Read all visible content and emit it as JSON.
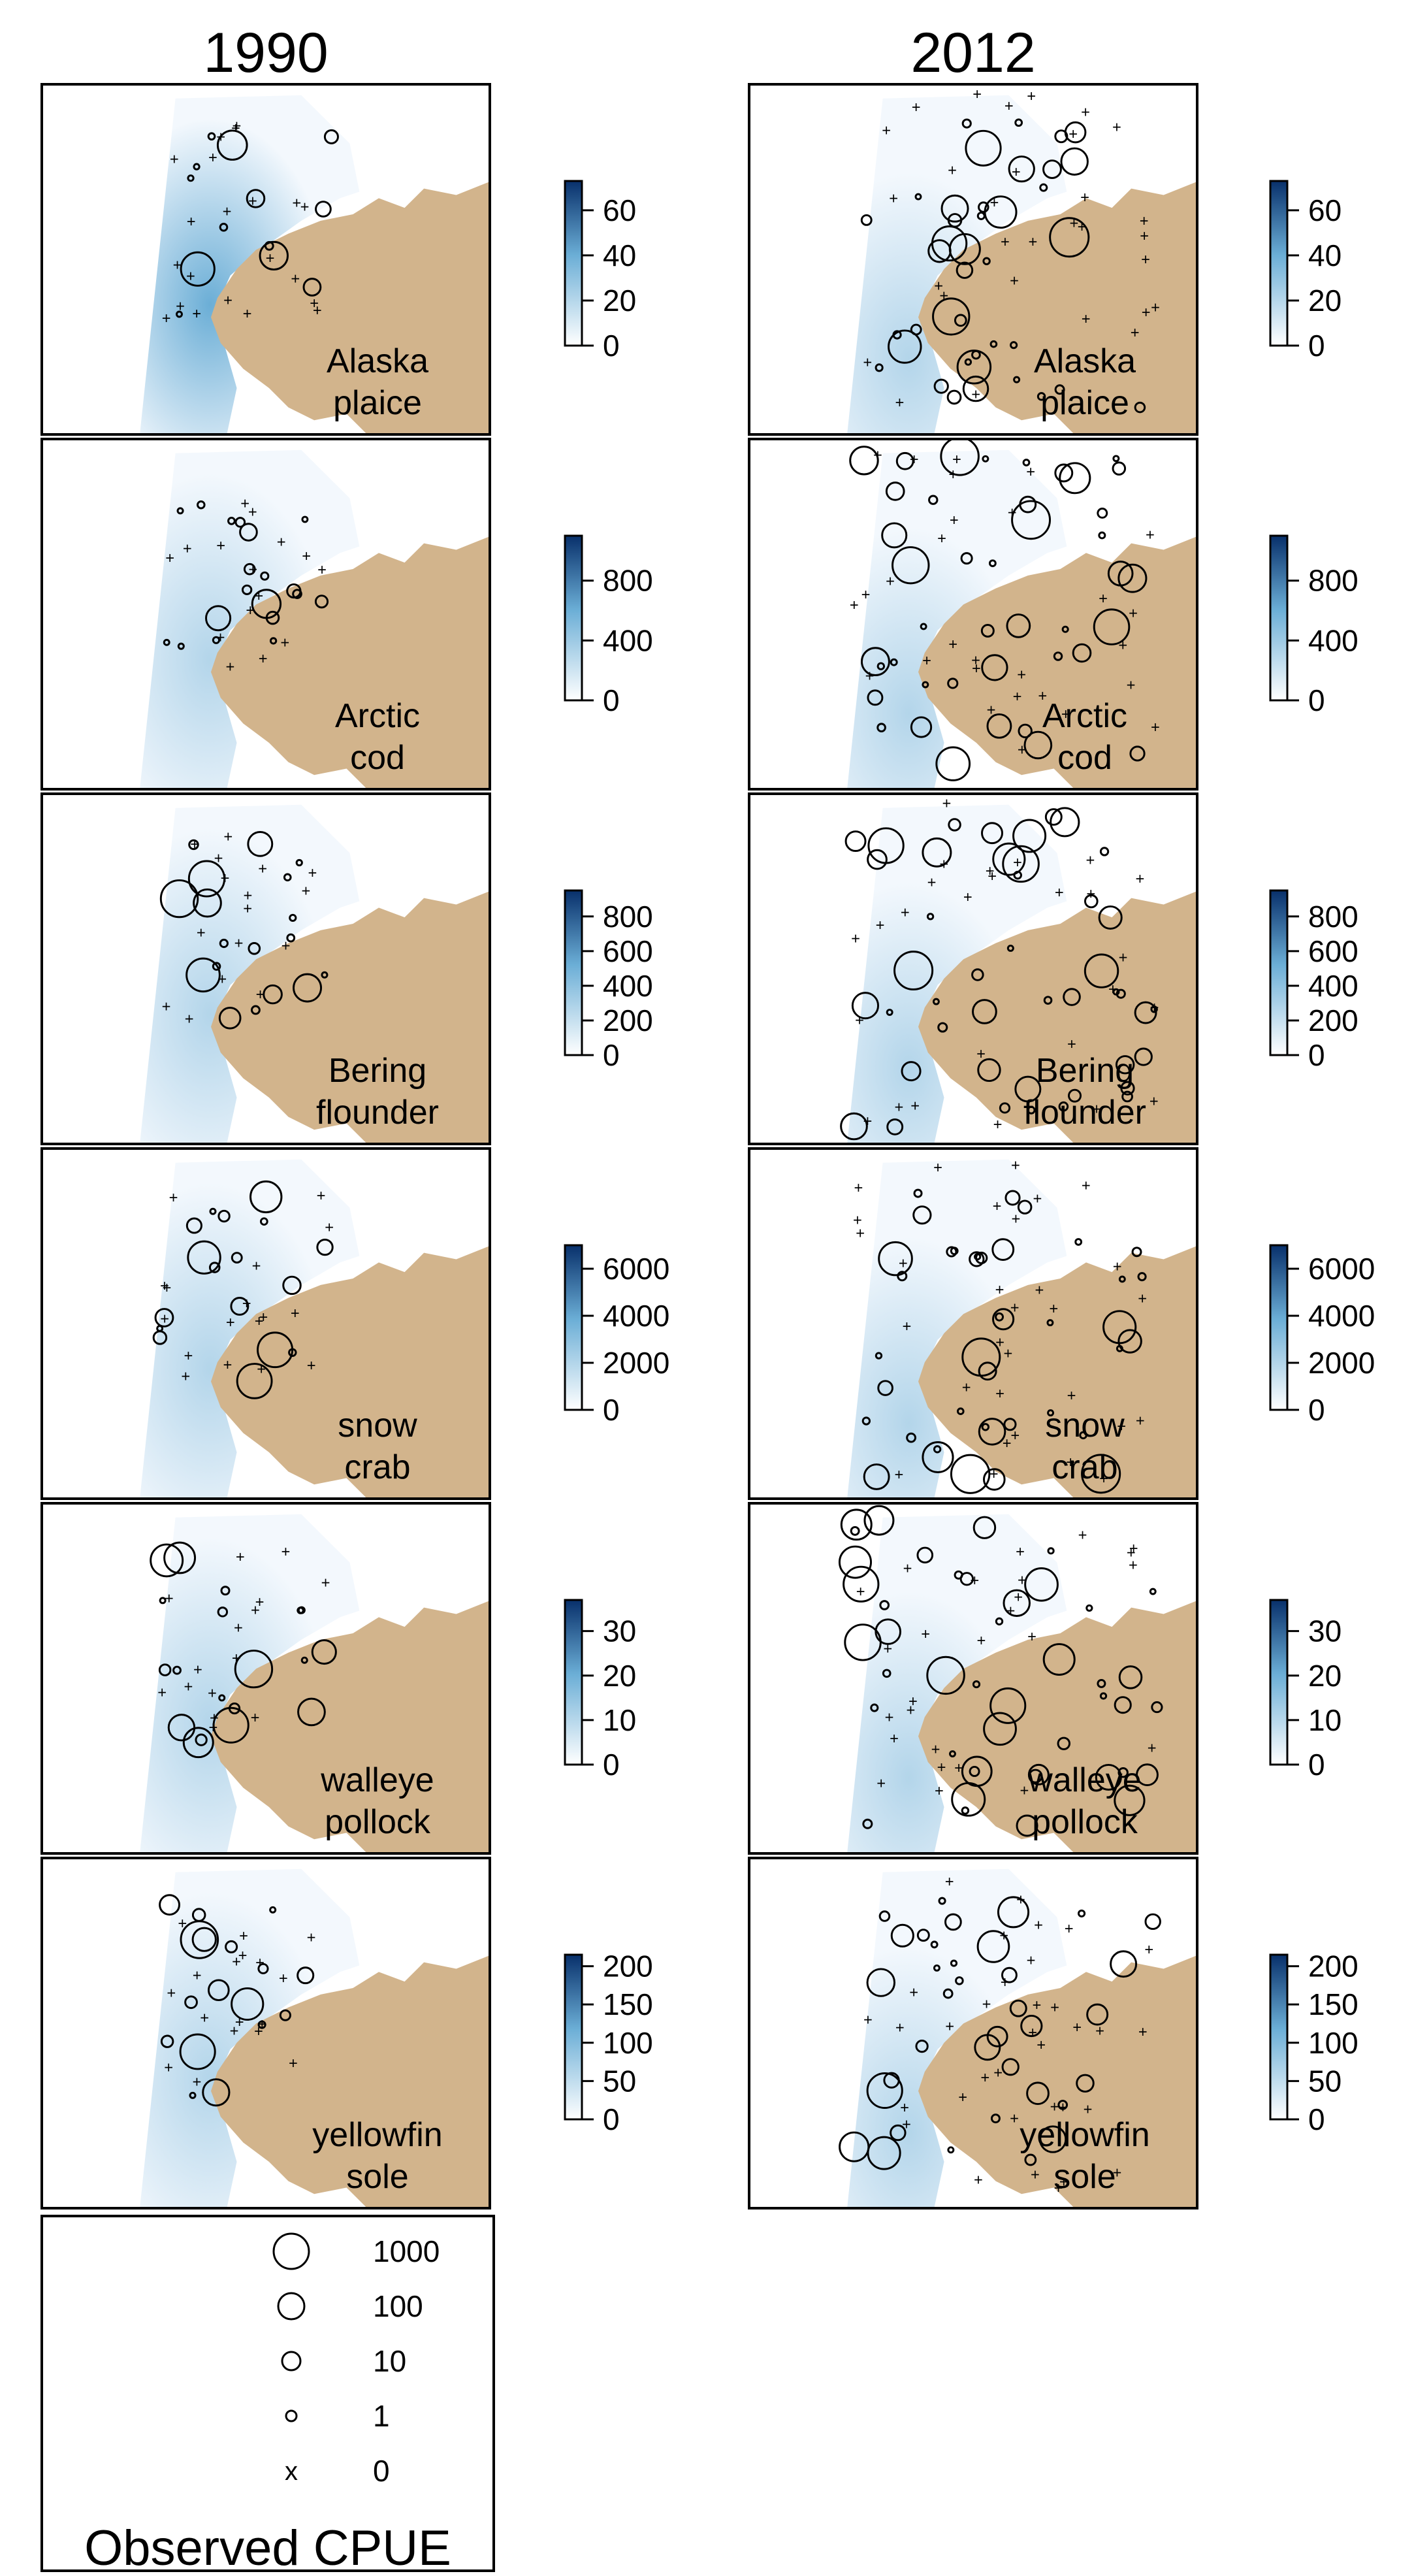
{
  "chart_data": {
    "type": "heatmap",
    "description_of_layout": "grid",
    "columns": [
      "1990",
      "2012"
    ],
    "species": [
      {
        "label_line1": "Alaska",
        "label_line2": "plaice",
        "colorbar_ticks": [
          "0",
          "20",
          "40",
          "60"
        ],
        "colorbar_max": 73
      },
      {
        "label_line1": "Arctic",
        "label_line2": "cod",
        "colorbar_ticks": [
          "0",
          "400",
          "800"
        ],
        "colorbar_max": 1100
      },
      {
        "label_line1": "Bering",
        "label_line2": "flounder",
        "colorbar_ticks": [
          "0",
          "200",
          "400",
          "600",
          "800"
        ],
        "colorbar_max": 950
      },
      {
        "label_line1": "snow",
        "label_line2": "crab",
        "colorbar_ticks": [
          "0",
          "2000",
          "4000",
          "6000"
        ],
        "colorbar_max": 7000
      },
      {
        "label_line1": "walleye",
        "label_line2": "pollock",
        "colorbar_ticks": [
          "0",
          "10",
          "20",
          "30"
        ],
        "colorbar_max": 37
      },
      {
        "label_line1": "yellowfin",
        "label_line2": "sole",
        "colorbar_ticks": [
          "0",
          "50",
          "100",
          "150",
          "200"
        ],
        "colorbar_max": 215
      }
    ],
    "size_legend": {
      "title": "Observed CPUE",
      "entries": [
        {
          "label": "1000",
          "symbol": "circle",
          "radius_rank": 4
        },
        {
          "label": "100",
          "symbol": "circle",
          "radius_rank": 3
        },
        {
          "label": "10",
          "symbol": "circle",
          "radius_rank": 2
        },
        {
          "label": "1",
          "symbol": "circle",
          "radius_rank": 1
        },
        {
          "label": "0",
          "symbol": "x",
          "radius_rank": 0
        }
      ]
    },
    "colors": {
      "land": "#D2B48C",
      "colorbar_low": "#ffffff",
      "colorbar_high": "#08306b",
      "ocean_mid": "#6baed6"
    }
  }
}
